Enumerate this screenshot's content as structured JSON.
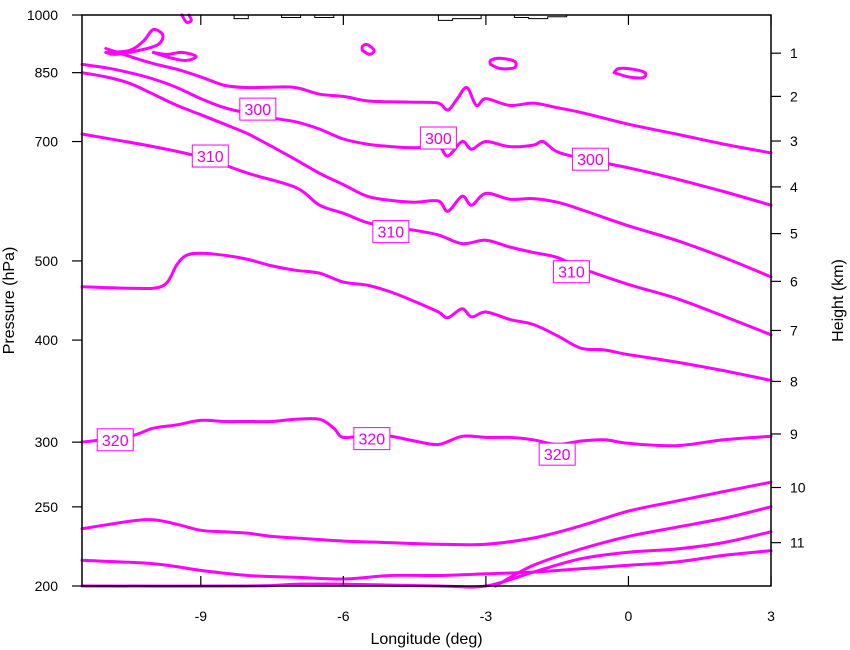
{
  "chart_data": {
    "type": "line",
    "xlabel": "Longitude (deg)",
    "ylabel_left": "Pressure (hPa)",
    "ylabel_right": "Height (km)",
    "xlim": [
      -11.5,
      3
    ],
    "ylim_pressure": [
      1000,
      200
    ],
    "x_scale": "linear",
    "y_scale": "log",
    "x_ticks": [
      -9,
      -6,
      -3,
      0,
      3
    ],
    "x_tick_labels": [
      "-9",
      "-6",
      "-3",
      "0",
      "3"
    ],
    "y_left_ticks": [
      1000,
      850,
      700,
      500,
      400,
      300,
      250,
      200
    ],
    "y_left_tick_labels": [
      "1000",
      "850",
      "700",
      "500",
      "400",
      "300",
      "250",
      "200"
    ],
    "y_right_ticks": [
      {
        "label": "1",
        "pressure": 898
      },
      {
        "label": "2",
        "pressure": 795
      },
      {
        "label": "3",
        "pressure": 701
      },
      {
        "label": "4",
        "pressure": 616
      },
      {
        "label": "5",
        "pressure": 540
      },
      {
        "label": "6",
        "pressure": 472
      },
      {
        "label": "7",
        "pressure": 411
      },
      {
        "label": "8",
        "pressure": 356
      },
      {
        "label": "9",
        "pressure": 307
      },
      {
        "label": "10",
        "pressure": 264
      },
      {
        "label": "11",
        "pressure": 226
      }
    ],
    "line_color": "#ff00ff",
    "terrain_color": "#000000",
    "series": [
      {
        "points": [
          [
            -11.5,
            215
          ],
          [
            -10,
            213
          ],
          [
            -9,
            209
          ],
          [
            -8,
            206
          ],
          [
            -7,
            205
          ],
          [
            -6,
            204
          ],
          [
            -5,
            206
          ],
          [
            -4,
            206
          ],
          [
            -3,
            207
          ],
          [
            -2,
            208
          ],
          [
            -1,
            210
          ],
          [
            0,
            212
          ],
          [
            1,
            214
          ],
          [
            2,
            218
          ],
          [
            3,
            221
          ]
        ]
      },
      {
        "points": [
          [
            -11.5,
            200
          ],
          [
            -8,
            200
          ],
          [
            -7,
            201
          ],
          [
            -6,
            201
          ],
          [
            -4,
            200
          ],
          [
            -3,
            200
          ],
          [
            -2,
            208
          ],
          [
            -1,
            216
          ],
          [
            0,
            220
          ],
          [
            1,
            222
          ],
          [
            2,
            226
          ],
          [
            3,
            233
          ]
        ]
      },
      {
        "points": [
          [
            -2.8,
            200
          ],
          [
            -2,
            212
          ],
          [
            -1,
            222
          ],
          [
            0,
            230
          ],
          [
            1,
            236
          ],
          [
            2,
            242
          ],
          [
            3,
            250
          ]
        ]
      },
      {
        "points": [
          [
            -11.5,
            235
          ],
          [
            -10.5,
            240
          ],
          [
            -10,
            241
          ],
          [
            -9.5,
            238
          ],
          [
            -9,
            234
          ],
          [
            -8.5,
            233
          ],
          [
            -8,
            232
          ],
          [
            -7.5,
            230
          ],
          [
            -7,
            229
          ],
          [
            -6,
            227
          ],
          [
            -5,
            226
          ],
          [
            -4,
            225
          ],
          [
            -3,
            225
          ],
          [
            -2,
            229
          ],
          [
            -1,
            237
          ],
          [
            0,
            247
          ],
          [
            1,
            254
          ],
          [
            2,
            261
          ],
          [
            3,
            268
          ]
        ]
      },
      {
        "points": [
          [
            -11.5,
            300
          ],
          [
            -10.5,
            305
          ],
          [
            -10,
            312
          ],
          [
            -9.5,
            315
          ],
          [
            -9,
            319
          ],
          [
            -8.5,
            318
          ],
          [
            -8,
            318
          ],
          [
            -7.5,
            318
          ],
          [
            -7,
            320
          ],
          [
            -6.5,
            320
          ],
          [
            -6.2,
            312
          ],
          [
            -6,
            304
          ],
          [
            -5.5,
            306
          ],
          [
            -5,
            305
          ],
          [
            -4.5,
            301
          ],
          [
            -4,
            298
          ],
          [
            -3.5,
            305
          ],
          [
            -3,
            304
          ],
          [
            -2.5,
            304
          ],
          [
            -2,
            302
          ],
          [
            -1.5,
            298
          ],
          [
            -1,
            301
          ],
          [
            -0.5,
            302
          ],
          [
            0,
            299
          ],
          [
            1,
            297
          ],
          [
            2,
            302
          ],
          [
            3,
            305
          ]
        ]
      },
      {
        "points": [
          [
            -11.5,
            465
          ],
          [
            -10.5,
            463
          ],
          [
            -9.8,
            466
          ],
          [
            -9.5,
            495
          ],
          [
            -9.3,
            508
          ],
          [
            -9,
            511
          ],
          [
            -8.5,
            508
          ],
          [
            -8,
            502
          ],
          [
            -7.5,
            493
          ],
          [
            -7,
            487
          ],
          [
            -6.5,
            483
          ],
          [
            -6,
            471
          ],
          [
            -5.5,
            467
          ],
          [
            -5,
            458
          ],
          [
            -4.5,
            446
          ],
          [
            -4,
            433
          ],
          [
            -3.8,
            426
          ],
          [
            -3.5,
            437
          ],
          [
            -3.3,
            427
          ],
          [
            -3,
            433
          ],
          [
            -2.5,
            424
          ],
          [
            -2,
            418
          ],
          [
            -1.5,
            405
          ],
          [
            -1,
            391
          ],
          [
            -0.5,
            389
          ],
          [
            0,
            384
          ],
          [
            1,
            376
          ],
          [
            2,
            367
          ],
          [
            3,
            357
          ]
        ]
      },
      {
        "points": [
          [
            -11.5,
            715
          ],
          [
            -10,
            690
          ],
          [
            -9,
            670
          ],
          [
            -8,
            640
          ],
          [
            -7,
            615
          ],
          [
            -6.5,
            585
          ],
          [
            -6,
            572
          ],
          [
            -5.5,
            557
          ],
          [
            -5,
            550
          ],
          [
            -4.5,
            545
          ],
          [
            -4,
            538
          ],
          [
            -3.5,
            525
          ],
          [
            -3,
            530
          ],
          [
            -2.5,
            520
          ],
          [
            -2,
            512
          ],
          [
            -1.5,
            505
          ],
          [
            -1,
            490
          ],
          [
            0,
            468
          ],
          [
            1,
            450
          ],
          [
            2,
            428
          ],
          [
            3,
            406
          ]
        ]
      },
      {
        "points": [
          [
            -11.5,
            850
          ],
          [
            -11,
            840
          ],
          [
            -10.5,
            825
          ],
          [
            -10,
            800
          ],
          [
            -9.5,
            775
          ],
          [
            -9,
            755
          ],
          [
            -8.5,
            735
          ],
          [
            -8,
            715
          ],
          [
            -7.5,
            690
          ],
          [
            -7,
            665
          ],
          [
            -6.5,
            640
          ],
          [
            -6,
            620
          ],
          [
            -5.5,
            600
          ],
          [
            -5,
            593
          ],
          [
            -4.5,
            590
          ],
          [
            -4,
            592
          ],
          [
            -3.8,
            575
          ],
          [
            -3.5,
            600
          ],
          [
            -3.3,
            585
          ],
          [
            -3,
            605
          ],
          [
            -2.5,
            595
          ],
          [
            -2,
            596
          ],
          [
            -1.5,
            590
          ],
          [
            -1,
            578
          ],
          [
            0,
            552
          ],
          [
            1,
            530
          ],
          [
            2,
            505
          ],
          [
            3,
            478
          ]
        ]
      },
      {
        "points": [
          [
            -11.5,
            870
          ],
          [
            -11,
            862
          ],
          [
            -10.5,
            850
          ],
          [
            -10,
            835
          ],
          [
            -9.5,
            815
          ],
          [
            -9,
            790
          ],
          [
            -8.5,
            770
          ],
          [
            -8,
            758
          ],
          [
            -7.5,
            748
          ],
          [
            -7,
            740
          ],
          [
            -6.5,
            725
          ],
          [
            -6,
            705
          ],
          [
            -5.5,
            695
          ],
          [
            -5,
            690
          ],
          [
            -4.5,
            688
          ],
          [
            -4,
            690
          ],
          [
            -3.8,
            672
          ],
          [
            -3.5,
            700
          ],
          [
            -3.3,
            685
          ],
          [
            -3,
            700
          ],
          [
            -2.5,
            690
          ],
          [
            -2,
            693
          ],
          [
            -1.8,
            700
          ],
          [
            -1.5,
            680
          ],
          [
            -1,
            668
          ],
          [
            0,
            650
          ],
          [
            1,
            630
          ],
          [
            2,
            608
          ],
          [
            3,
            585
          ]
        ]
      },
      {
        "points": [
          [
            -11,
            910
          ],
          [
            -10.5,
            890
          ],
          [
            -10,
            872
          ],
          [
            -9.5,
            858
          ],
          [
            -9,
            840
          ],
          [
            -8.5,
            820
          ],
          [
            -8,
            815
          ],
          [
            -7.5,
            816
          ],
          [
            -7,
            815
          ],
          [
            -6.5,
            800
          ],
          [
            -6,
            795
          ],
          [
            -5.5,
            785
          ],
          [
            -5,
            783
          ],
          [
            -4.5,
            782
          ],
          [
            -4,
            780
          ],
          [
            -3.8,
            765
          ],
          [
            -3.6,
            790
          ],
          [
            -3.4,
            815
          ],
          [
            -3.2,
            775
          ],
          [
            -3,
            790
          ],
          [
            -2.5,
            775
          ],
          [
            -2,
            780
          ],
          [
            -1.5,
            770
          ],
          [
            -1,
            760
          ],
          [
            0,
            735
          ],
          [
            1,
            715
          ],
          [
            2,
            695
          ],
          [
            3,
            678
          ]
        ]
      },
      {
        "points": [
          [
            -10,
            900
          ],
          [
            -9.7,
            895
          ],
          [
            -9.4,
            900
          ],
          [
            -9.1,
            890
          ],
          [
            -9.3,
            880
          ],
          [
            -9.6,
            885
          ],
          [
            -10,
            900
          ]
        ]
      },
      {
        "points": [
          [
            -11,
            900
          ],
          [
            -10.5,
            905
          ],
          [
            -10.2,
            930
          ],
          [
            -10,
            960
          ],
          [
            -9.8,
            945
          ],
          [
            -9.9,
            920
          ],
          [
            -10.3,
            905
          ],
          [
            -10.8,
            895
          ],
          [
            -11,
            900
          ]
        ]
      },
      {
        "points": [
          [
            -9.4,
            1000
          ],
          [
            -9.3,
            980
          ],
          [
            -9.2,
            985
          ],
          [
            -9.25,
            1000
          ]
        ]
      },
      {
        "points": [
          [
            -5.6,
            905
          ],
          [
            -5.45,
            895
          ],
          [
            -5.35,
            905
          ],
          [
            -5.5,
            920
          ],
          [
            -5.6,
            915
          ],
          [
            -5.6,
            905
          ]
        ]
      },
      {
        "points": [
          [
            -2.9,
            870
          ],
          [
            -2.7,
            860
          ],
          [
            -2.4,
            862
          ],
          [
            -2.4,
            878
          ],
          [
            -2.7,
            885
          ],
          [
            -2.9,
            880
          ],
          [
            -2.9,
            870
          ]
        ]
      },
      {
        "points": [
          [
            -0.3,
            850
          ],
          [
            0,
            840
          ],
          [
            0.3,
            838
          ],
          [
            0.35,
            850
          ],
          [
            0.1,
            858
          ],
          [
            -0.2,
            860
          ],
          [
            -0.3,
            850
          ]
        ]
      }
    ],
    "terrain": [
      [
        -11.5,
        1000
      ],
      [
        -8.3,
        1000
      ],
      [
        -8.3,
        990
      ],
      [
        -8.0,
        990
      ],
      [
        -8.0,
        1000
      ],
      [
        -7.3,
        1000
      ],
      [
        -7.3,
        993
      ],
      [
        -6.9,
        993
      ],
      [
        -6.9,
        1000
      ],
      [
        -6.6,
        1000
      ],
      [
        -6.6,
        993
      ],
      [
        -6.2,
        993
      ],
      [
        -6.2,
        1000
      ],
      [
        -4.0,
        1000
      ],
      [
        -4.0,
        985
      ],
      [
        -3.7,
        985
      ],
      [
        -3.7,
        990
      ],
      [
        -3.1,
        990
      ],
      [
        -3.1,
        1000
      ],
      [
        -2.4,
        1000
      ],
      [
        -2.4,
        993
      ],
      [
        -2.1,
        993
      ],
      [
        -2.1,
        990
      ],
      [
        -1.7,
        990
      ],
      [
        -1.7,
        995
      ],
      [
        -1.3,
        995
      ],
      [
        -1.3,
        1000
      ],
      [
        3,
        1000
      ]
    ],
    "contour_labels": [
      {
        "text": "320",
        "lon": -10.8,
        "p": 302
      },
      {
        "text": "320",
        "lon": -5.4,
        "p": 303
      },
      {
        "text": "320",
        "lon": -1.5,
        "p": 290
      },
      {
        "text": "310",
        "lon": -1.2,
        "p": 485
      },
      {
        "text": "310",
        "lon": -5.0,
        "p": 543
      },
      {
        "text": "310",
        "lon": -8.8,
        "p": 672
      },
      {
        "text": "300",
        "lon": -0.8,
        "p": 666
      },
      {
        "text": "300",
        "lon": -4.0,
        "p": 707
      },
      {
        "text": "300",
        "lon": -7.8,
        "p": 767
      }
    ]
  }
}
